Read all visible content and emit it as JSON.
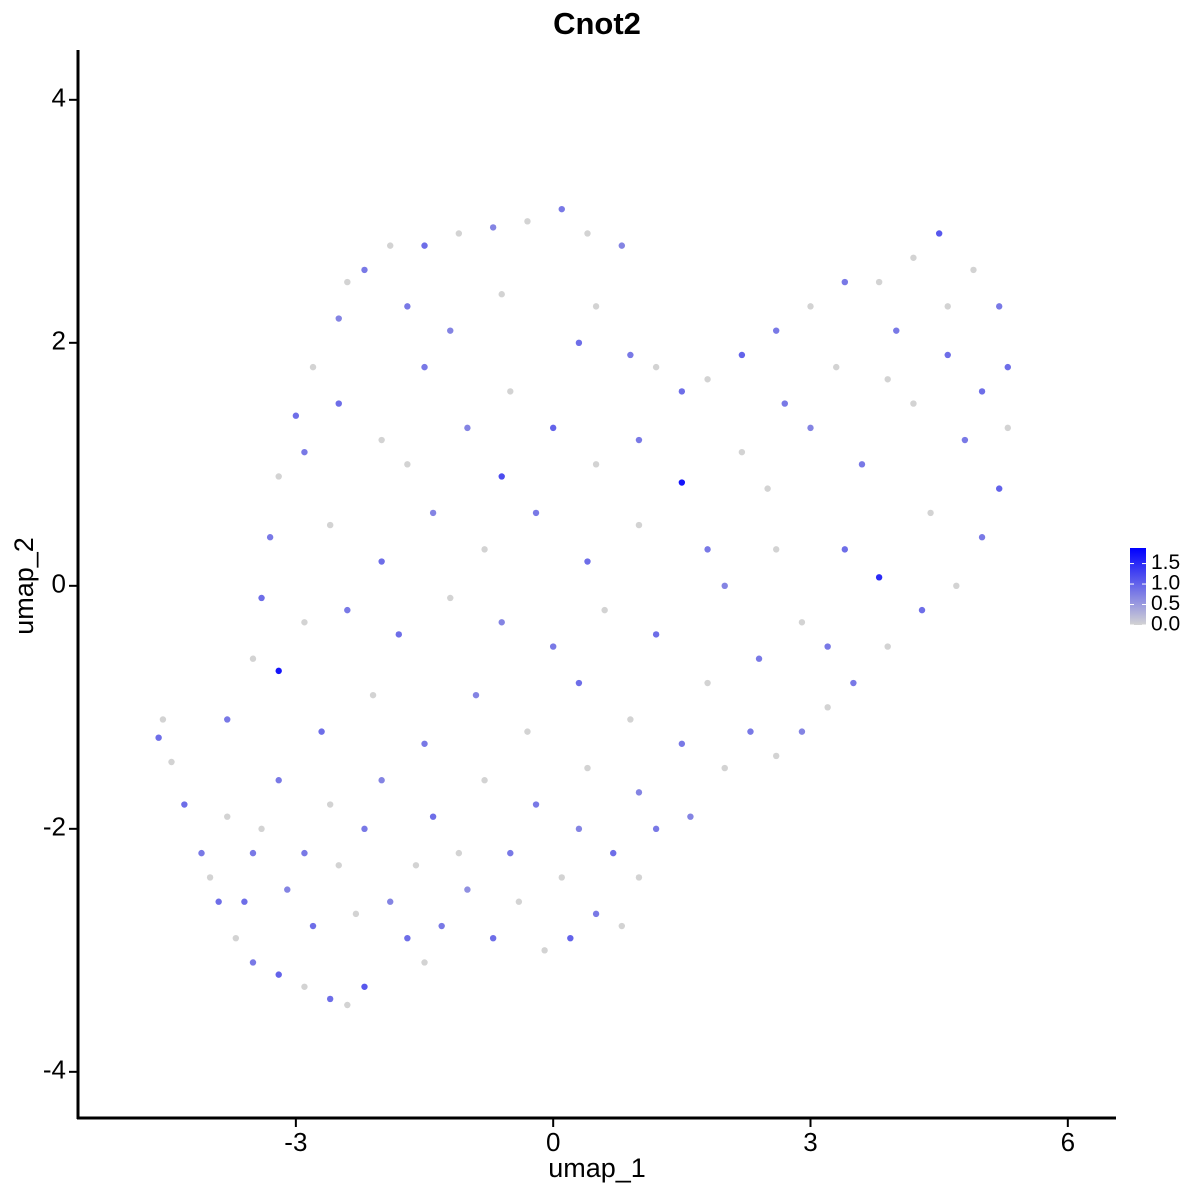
{
  "chart_data": {
    "type": "scatter",
    "title": "Cnot2",
    "x_label": "umap_1",
    "y_label": "umap_2",
    "xlim": [
      -5.54,
      6.55
    ],
    "ylim": [
      -4.38,
      4.41
    ],
    "xticks": [
      -3,
      0,
      3,
      6
    ],
    "yticks": [
      -4,
      -2,
      0,
      2,
      4
    ],
    "color_low": "#d3d3d3",
    "color_high": "#0000ff",
    "color_lim": [
      0,
      1.88
    ],
    "color_ticks": [
      {
        "value": 0,
        "label": "0.0"
      },
      0.5,
      {
        "value": 1,
        "label": "1.0"
      },
      1.5
    ],
    "x": [
      -4.6,
      -4.55,
      -4.45,
      -4.3,
      -4.1,
      -3.9,
      -3.7,
      -3.5,
      -3.2,
      -2.9,
      -2.6,
      -2.4,
      -2.2,
      -1.5,
      -3.8,
      -3.5,
      -3.1,
      -2.8,
      -2.5,
      -2.2,
      -1.9,
      -1.6,
      -1.3,
      -1.0,
      -0.7,
      -0.4,
      -0.1,
      0.2,
      0.5,
      0.8,
      1.0,
      1.2,
      1.6,
      2.0,
      2.3,
      2.6,
      2.9,
      3.2,
      3.5,
      3.9,
      4.3,
      4.7,
      5.0,
      5.2,
      5.3,
      5.3,
      5.2,
      4.9,
      4.5,
      4.2,
      3.8,
      3.4,
      3.0,
      2.6,
      2.2,
      1.8,
      1.5,
      1.2,
      0.9,
      0.5,
      0.8,
      0.4,
      0.1,
      -0.3,
      -0.7,
      -1.1,
      -1.5,
      -1.9,
      -2.2,
      -2.5,
      -2.8,
      -3.0,
      -3.2,
      -3.3,
      -3.4,
      -3.5,
      -3.8,
      -3.2,
      1.5,
      3.8,
      -2.5,
      -2.0,
      -1.5,
      -1.0,
      -0.5,
      0.0,
      0.5,
      1.0,
      -2.6,
      -2.0,
      -1.4,
      -0.8,
      -0.2,
      0.4,
      1.0,
      1.8,
      2.5,
      3.0,
      3.6,
      4.2,
      4.6,
      4.0,
      3.3,
      2.7,
      2.2,
      4.8,
      4.4,
      3.4,
      2.9,
      2.4,
      1.8,
      1.2,
      0.6,
      0.0,
      -0.6,
      -1.2,
      -1.8,
      -2.4,
      -2.9,
      -2.7,
      -2.1,
      -1.5,
      -0.9,
      -0.3,
      0.3,
      0.9,
      1.5,
      1.0,
      0.4,
      -0.2,
      -0.8,
      -1.4,
      -2.0,
      -2.6,
      -3.2,
      -3.4,
      -2.9,
      -2.3,
      -1.7,
      -1.1,
      -0.5,
      0.1,
      0.7,
      0.3,
      -0.6,
      -1.7,
      -2.9,
      -2.4,
      -1.7,
      -0.6,
      0.3,
      -1.2,
      4.6,
      5.0,
      3.9,
      2.0,
      2.6,
      3.2,
      -4.0,
      -3.6
    ],
    "y": [
      -1.25,
      -1.1,
      -1.45,
      -1.8,
      -2.2,
      -2.6,
      -2.9,
      -3.1,
      -3.2,
      -3.3,
      -3.4,
      -3.45,
      -3.3,
      -3.1,
      -1.9,
      -2.2,
      -2.5,
      -2.8,
      -2.3,
      -2.0,
      -2.6,
      -2.3,
      -2.8,
      -2.5,
      -2.9,
      -2.6,
      -3.0,
      -2.9,
      -2.7,
      -2.8,
      -2.4,
      -2.0,
      -1.9,
      -1.5,
      -1.2,
      -1.4,
      -1.2,
      -1.0,
      -0.8,
      -0.5,
      -0.2,
      0.0,
      0.4,
      0.8,
      1.3,
      1.8,
      2.3,
      2.6,
      2.9,
      2.7,
      2.5,
      2.5,
      2.3,
      2.1,
      1.9,
      1.7,
      1.6,
      1.8,
      1.9,
      2.3,
      2.8,
      2.9,
      3.1,
      3.0,
      2.95,
      2.9,
      2.8,
      2.8,
      2.6,
      2.2,
      1.8,
      1.4,
      0.9,
      0.4,
      -0.1,
      -0.6,
      -1.1,
      -0.7,
      0.85,
      0.07,
      1.5,
      1.2,
      1.8,
      1.3,
      1.6,
      1.3,
      1.0,
      1.2,
      0.5,
      0.2,
      0.6,
      0.3,
      0.6,
      0.2,
      0.5,
      0.3,
      0.8,
      1.3,
      1.0,
      1.5,
      1.9,
      2.1,
      1.8,
      1.5,
      1.1,
      1.2,
      0.6,
      0.3,
      -0.3,
      -0.6,
      -0.8,
      -0.4,
      -0.2,
      -0.5,
      -0.3,
      -0.1,
      -0.4,
      -0.2,
      -0.3,
      -1.2,
      -0.9,
      -1.3,
      -0.9,
      -1.2,
      -0.8,
      -1.1,
      -1.3,
      -1.7,
      -1.5,
      -1.8,
      -1.6,
      -1.9,
      -1.6,
      -1.8,
      -1.6,
      -2.0,
      -2.2,
      -2.7,
      -2.9,
      -2.2,
      -2.2,
      -2.4,
      -2.2,
      -2.0,
      0.9,
      1.0,
      1.1,
      2.5,
      2.3,
      2.4,
      2.0,
      2.1,
      2.3,
      1.6,
      1.7,
      0.0,
      0.3,
      -0.5,
      -2.4,
      -2.6
    ],
    "expression": [
      0.9,
      0,
      0,
      0.9,
      0.8,
      0.9,
      0,
      0.8,
      1.0,
      0,
      0.9,
      0,
      1.1,
      0,
      0,
      0.8,
      0.7,
      0.9,
      0,
      0.8,
      0.7,
      0,
      0.8,
      0.6,
      0.9,
      0,
      0,
      1.0,
      0.8,
      0,
      0,
      0.8,
      0.7,
      0,
      0.8,
      0,
      0.7,
      0,
      0.8,
      0,
      0.9,
      0,
      0.8,
      1.0,
      0,
      0.9,
      0.8,
      0,
      1.1,
      0,
      0,
      0.8,
      0,
      0.8,
      1.0,
      0,
      0.9,
      0,
      0.8,
      0,
      0.7,
      0,
      0.8,
      0,
      0.7,
      0,
      0.9,
      0,
      0.8,
      0.7,
      0,
      0.9,
      0,
      0.8,
      0.9,
      0,
      0.8,
      1.7,
      1.7,
      1.5,
      0.9,
      0,
      0.8,
      0.7,
      0,
      1.0,
      0,
      0.8,
      0,
      0.9,
      0.7,
      0,
      0.8,
      0.9,
      0,
      0.8,
      0,
      0.7,
      0.8,
      0,
      0.9,
      0.8,
      0,
      0.8,
      0,
      0.8,
      0,
      0.9,
      0,
      0.8,
      0,
      0.9,
      0,
      0.8,
      0.7,
      0,
      0.9,
      0.8,
      0,
      0.9,
      0,
      0.8,
      0.7,
      0,
      0.9,
      0,
      0.8,
      0.7,
      0,
      0.8,
      0,
      0.9,
      0.7,
      0,
      0.8,
      0,
      0.8,
      0,
      0.9,
      0,
      0.8,
      0,
      0.9,
      0.7,
      1.2,
      0,
      0.8,
      0,
      0.8,
      0,
      0.9,
      0.7,
      0,
      0.9,
      0,
      0.7,
      0,
      0.8,
      0,
      0.9
    ]
  }
}
